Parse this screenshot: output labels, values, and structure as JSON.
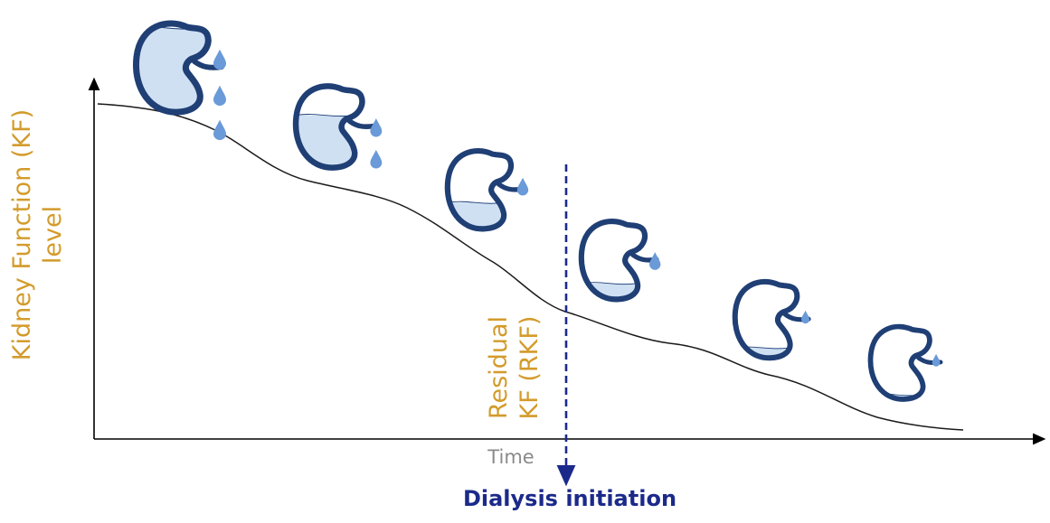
{
  "labels": {
    "y_axis_line1": "Kidney Function (KF)",
    "y_axis_line2": "level",
    "x_axis": "Time",
    "residual_line1": "Residual",
    "residual_line2": "KF (RKF)",
    "dialysis": "Dialysis initiation"
  },
  "colors": {
    "label_orange": "#d39b2b",
    "kidney_navy": "#1f3f75",
    "kidney_fill": "#cfe0f3",
    "drop_blue": "#6a9ad8",
    "dialysis_navy": "#1b2a8a",
    "axis_black": "#000000"
  },
  "kidney_stages": [
    {
      "drops": 3,
      "fill_level": 0.95
    },
    {
      "drops": 2,
      "fill_level": 0.65
    },
    {
      "drops": 1,
      "fill_level": 0.35
    },
    {
      "drops": 1,
      "fill_level": 0.22
    },
    {
      "drops": 1,
      "fill_level": 0.15
    },
    {
      "drops": 1,
      "fill_level": 0.08
    }
  ]
}
